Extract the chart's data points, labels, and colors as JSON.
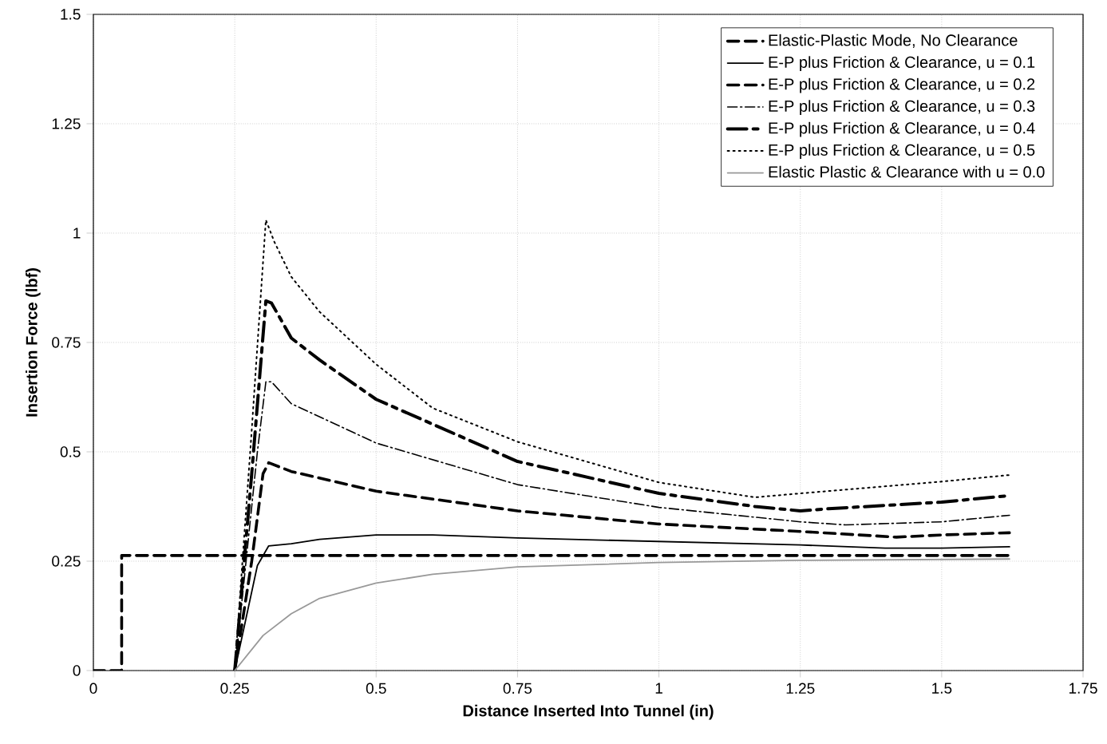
{
  "chart_data": {
    "type": "line",
    "xlabel": "Distance Inserted Into Tunnel (in)",
    "ylabel": "Insertion Force (lbf)",
    "xlim": [
      0,
      1.75
    ],
    "ylim": [
      0,
      1.5
    ],
    "xticks": [
      0,
      0.25,
      0.5,
      0.75,
      1,
      1.25,
      1.5,
      1.75
    ],
    "yticks": [
      0,
      0.25,
      0.5,
      0.75,
      1,
      1.25,
      1.5
    ],
    "grid": true,
    "legend": "top right",
    "marker": "none",
    "series": [
      {
        "name": "Elastic-Plastic Mode, No Clearance",
        "color": "#000000",
        "line_style": "dashed",
        "x": [
          0,
          0.05,
          0.05,
          1.62
        ],
        "values": [
          0,
          0,
          0.263,
          0.263
        ]
      },
      {
        "name": "E-P plus Friction & Clearance, u = 0.1",
        "color": "#000000",
        "line_style": "solid",
        "x": [
          0.25,
          0.27,
          0.29,
          0.31,
          0.35,
          0.4,
          0.5,
          0.6,
          0.75,
          1.0,
          1.25,
          1.4,
          1.5,
          1.62
        ],
        "values": [
          0,
          0.12,
          0.24,
          0.285,
          0.29,
          0.3,
          0.31,
          0.31,
          0.303,
          0.295,
          0.287,
          0.28,
          0.28,
          0.283
        ]
      },
      {
        "name": "E-P plus Friction & Clearance, u = 0.2",
        "color": "#000000",
        "line_style": "dashed",
        "x": [
          0.25,
          0.28,
          0.3,
          0.31,
          0.33,
          0.35,
          0.5,
          0.75,
          1.0,
          1.25,
          1.42,
          1.5,
          1.62
        ],
        "values": [
          0,
          0.25,
          0.45,
          0.475,
          0.465,
          0.455,
          0.41,
          0.365,
          0.335,
          0.318,
          0.305,
          0.31,
          0.315
        ]
      },
      {
        "name": "E-P plus Friction & Clearance, u = 0.3",
        "color": "#000000",
        "line_style": "dashdot",
        "x": [
          0.25,
          0.29,
          0.305,
          0.315,
          0.35,
          0.5,
          0.75,
          1.0,
          1.25,
          1.33,
          1.5,
          1.62
        ],
        "values": [
          0,
          0.5,
          0.66,
          0.66,
          0.61,
          0.52,
          0.425,
          0.373,
          0.34,
          0.333,
          0.34,
          0.355
        ]
      },
      {
        "name": "E-P plus Friction & Clearance, u = 0.4",
        "color": "#000000",
        "line_style": "longdash",
        "x": [
          0.25,
          0.28,
          0.305,
          0.315,
          0.35,
          0.4,
          0.5,
          0.75,
          1.0,
          1.17,
          1.25,
          1.3,
          1.5,
          1.62
        ],
        "values": [
          0,
          0.45,
          0.845,
          0.84,
          0.76,
          0.71,
          0.62,
          0.478,
          0.405,
          0.375,
          0.365,
          0.37,
          0.385,
          0.4
        ]
      },
      {
        "name": "E-P plus Friction & Clearance, u = 0.5",
        "color": "#000000",
        "line_style": "dotted",
        "x": [
          0.25,
          0.28,
          0.305,
          0.32,
          0.35,
          0.4,
          0.5,
          0.6,
          0.75,
          1.0,
          1.17,
          1.25,
          1.5,
          1.62
        ],
        "values": [
          0,
          0.55,
          1.03,
          0.98,
          0.9,
          0.82,
          0.7,
          0.6,
          0.523,
          0.43,
          0.396,
          0.405,
          0.432,
          0.447
        ]
      },
      {
        "name": "Elastic Plastic & Clearance with u = 0.0",
        "color": "#999999",
        "line_style": "solid",
        "x": [
          0.25,
          0.3,
          0.35,
          0.4,
          0.5,
          0.6,
          0.75,
          1.0,
          1.25,
          1.62
        ],
        "values": [
          0,
          0.08,
          0.13,
          0.165,
          0.2,
          0.22,
          0.237,
          0.247,
          0.252,
          0.255
        ]
      }
    ]
  }
}
